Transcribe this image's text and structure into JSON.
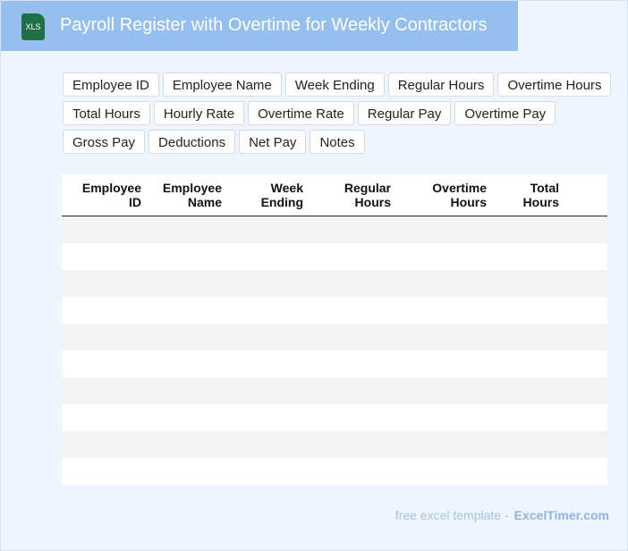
{
  "header": {
    "icon_label": "XLS",
    "title": "Payroll Register with Overtime for Weekly Contractors"
  },
  "fields": [
    "Employee ID",
    "Employee Name",
    "Week Ending",
    "Regular Hours",
    "Overtime Hours",
    "Total Hours",
    "Hourly Rate",
    "Overtime Rate",
    "Regular Pay",
    "Overtime Pay",
    "Gross Pay",
    "Deductions",
    "Net Pay",
    "Notes"
  ],
  "table": {
    "columns": [
      "Employee ID",
      "Employee Name",
      "Week Ending",
      "Regular Hours",
      "Overtime Hours",
      "Total Hours"
    ]
  },
  "footer": {
    "text": "free excel template -",
    "brand": "ExcelTimer.com"
  }
}
